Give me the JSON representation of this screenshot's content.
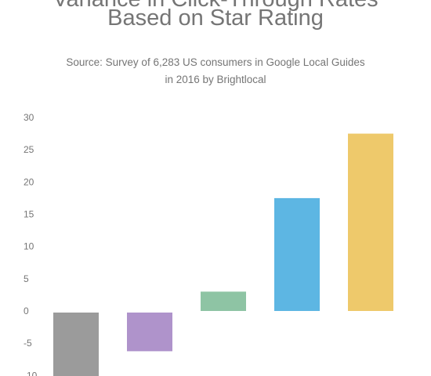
{
  "title_line1": "Variance in Click-Through Rates",
  "title_line2": "Based on Star Rating",
  "subtitle_line1": "Source: Survey of 6,283 US consumers in Google Local Guides",
  "subtitle_line2": "in 2016 by Brightlocal",
  "chart_data": {
    "type": "bar",
    "title": "Variance in Click-Through Rates Based on Star Rating",
    "subtitle": "Source: Survey of 6,283 US consumers in Google Local Guides in 2016 by Brightlocal",
    "categories": [
      "",
      "",
      "",
      "",
      ""
    ],
    "values": [
      -10.5,
      -6,
      3,
      17.5,
      27.5
    ],
    "colors": [
      "#9b9b9b",
      "#af93cb",
      "#8ec4a4",
      "#5db6e3",
      "#eec96b"
    ],
    "ylim": [
      -10,
      30
    ],
    "yticks": [
      30,
      25,
      20,
      15,
      10,
      5,
      0,
      -5,
      -10
    ],
    "grid": false,
    "xlabel": "",
    "ylabel": ""
  }
}
